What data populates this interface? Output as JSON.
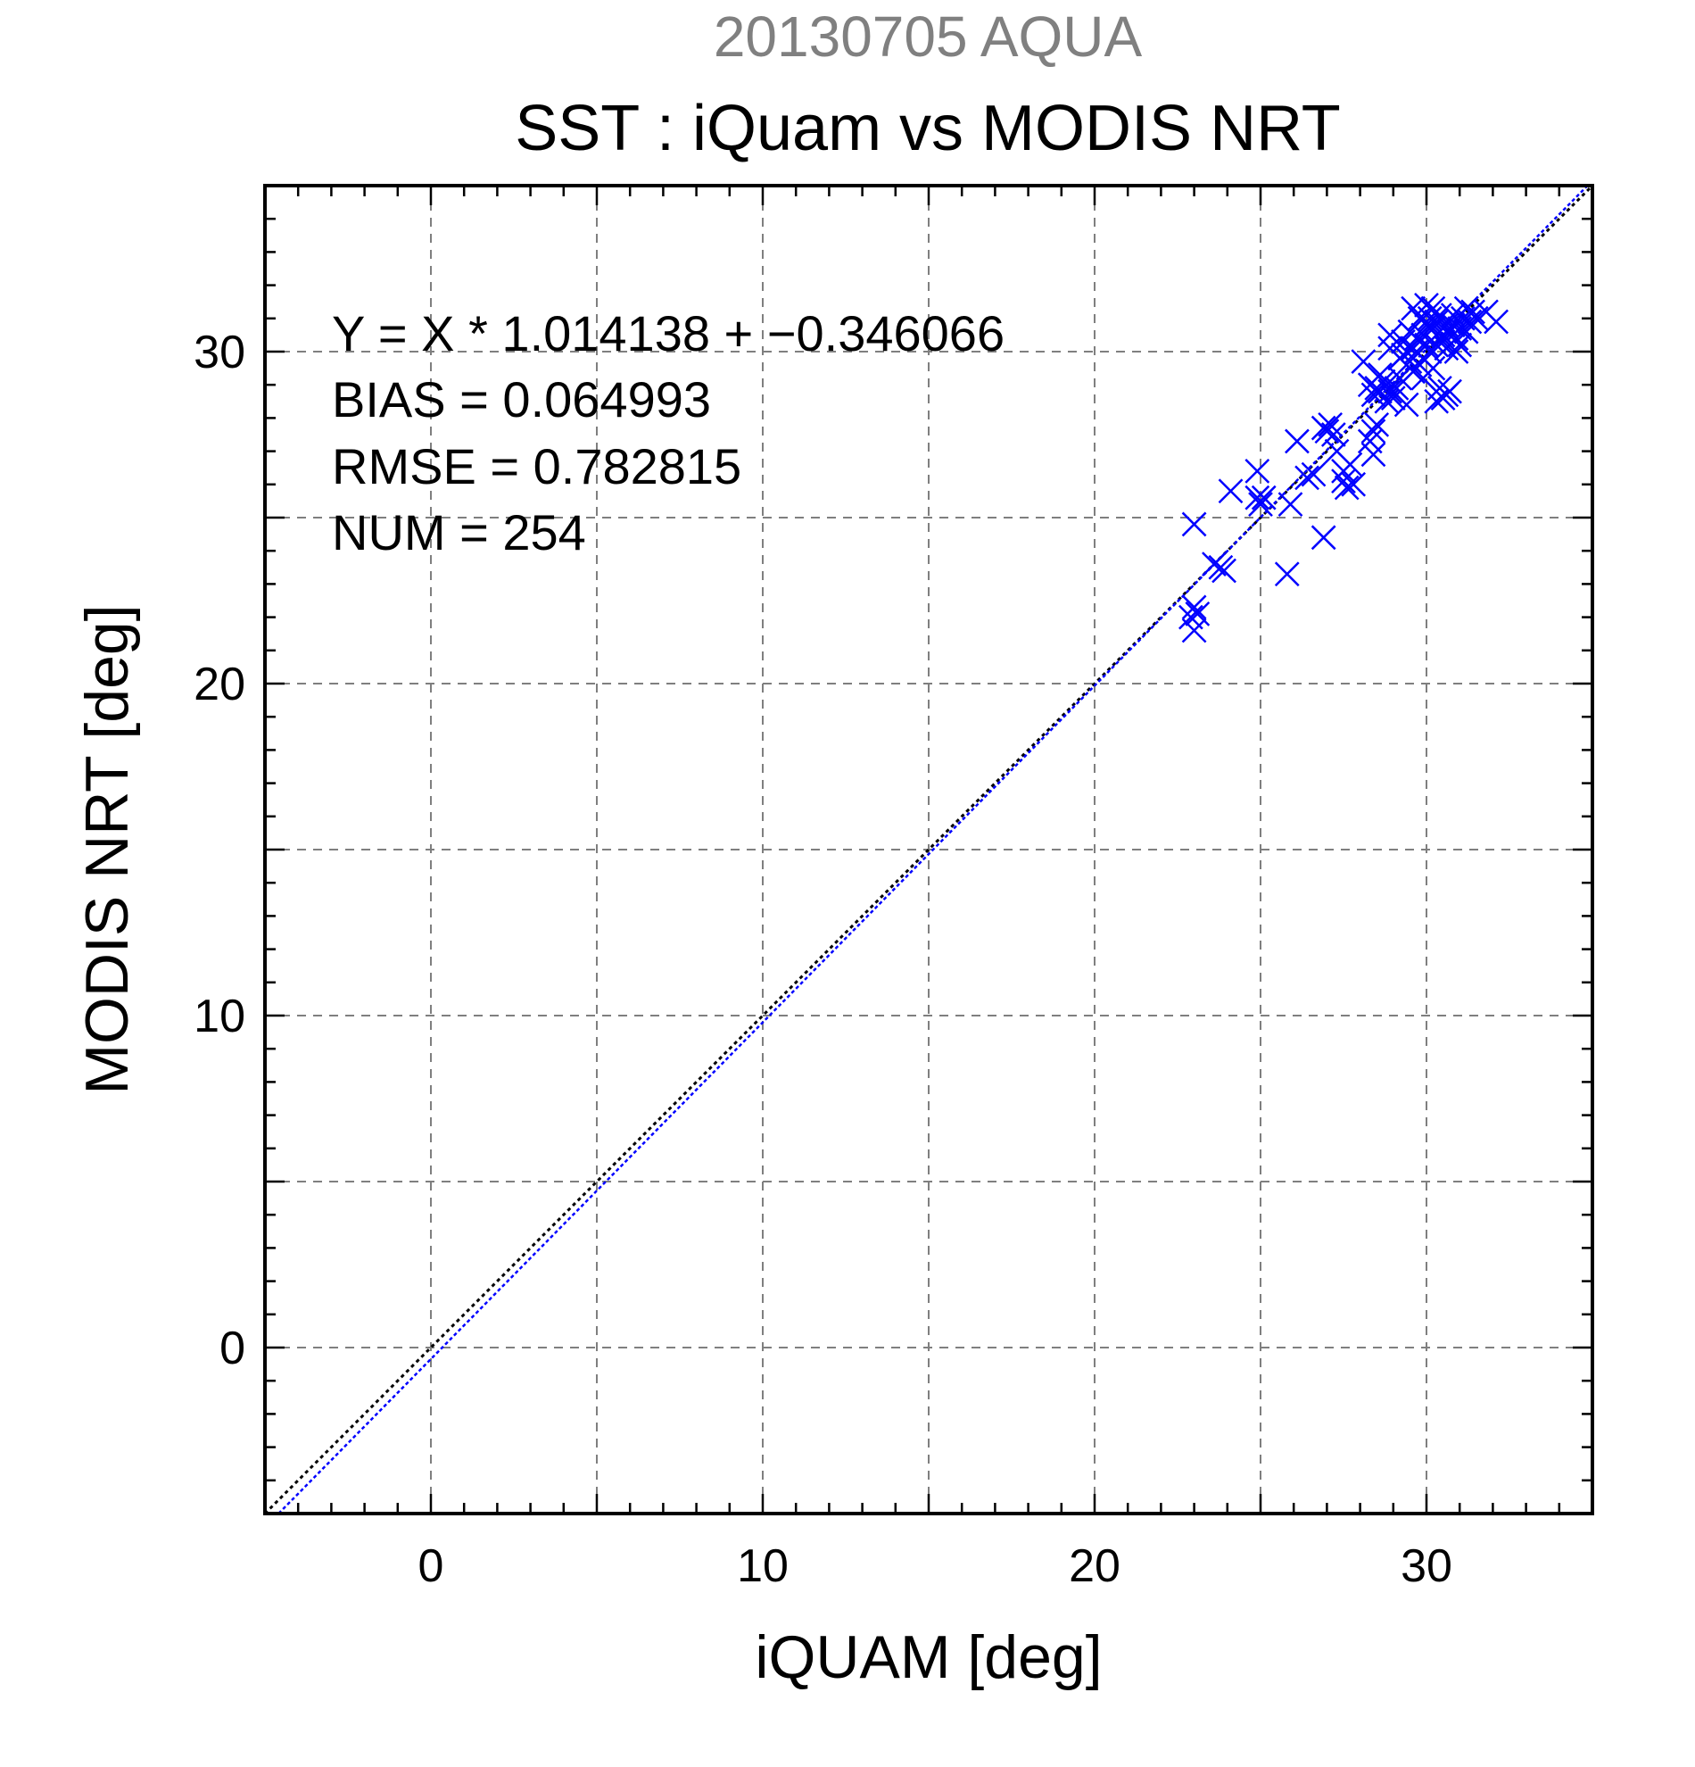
{
  "header": {
    "supertitle": "20130705 AQUA",
    "title": "SST : iQuam vs MODIS NRT"
  },
  "stats": {
    "equation": "Y = X * 1.014138 + −0.346066",
    "bias": "BIAS = 0.064993",
    "rmse": "RMSE = 0.782815",
    "num": "NUM = 254"
  },
  "chart_data": {
    "type": "scatter",
    "xlabel": "iQUAM [deg]",
    "ylabel": "MODIS NRT [deg]",
    "xlim": [
      -5,
      35
    ],
    "ylim": [
      -5,
      35
    ],
    "grid": true,
    "major_ticks": [
      0,
      10,
      20,
      30
    ],
    "grid_step": 5,
    "minor_step": 1,
    "tick_labels": [
      "0",
      "10",
      "20",
      "30"
    ],
    "marker": "x",
    "colors": {
      "points": "#0000ff",
      "fit": "#0000ff",
      "one_to_one": "#000000",
      "grid": "#7f7f7f"
    },
    "fit_line": {
      "slope": 1.014138,
      "intercept": -0.346066
    },
    "one_to_one_line": {
      "slope": 1,
      "intercept": 0
    },
    "points": [
      [
        23.0,
        24.8
      ],
      [
        23.0,
        22.3
      ],
      [
        23.1,
        22.1
      ],
      [
        22.9,
        22.0
      ],
      [
        23.0,
        21.6
      ],
      [
        23.6,
        23.6
      ],
      [
        23.8,
        23.5
      ],
      [
        23.9,
        23.4
      ],
      [
        24.1,
        25.8
      ],
      [
        24.9,
        26.4
      ],
      [
        24.9,
        25.6
      ],
      [
        25.1,
        25.6
      ],
      [
        25.0,
        25.4
      ],
      [
        25.8,
        23.3
      ],
      [
        25.9,
        25.4
      ],
      [
        26.1,
        27.3
      ],
      [
        26.4,
        26.2
      ],
      [
        26.6,
        26.3
      ],
      [
        26.9,
        27.7
      ],
      [
        27.0,
        27.6
      ],
      [
        27.1,
        27.8
      ],
      [
        27.2,
        27.5
      ],
      [
        26.9,
        24.4
      ],
      [
        27.3,
        27.0
      ],
      [
        27.5,
        26.1
      ],
      [
        27.6,
        25.9
      ],
      [
        27.7,
        26.6
      ],
      [
        27.5,
        26.4
      ],
      [
        27.8,
        26.0
      ],
      [
        28.1,
        29.7
      ],
      [
        28.3,
        29.0
      ],
      [
        28.4,
        28.7
      ],
      [
        28.5,
        28.9
      ],
      [
        28.6,
        28.8
      ],
      [
        28.7,
        29.1
      ],
      [
        28.8,
        29.0
      ],
      [
        28.9,
        28.8
      ],
      [
        28.5,
        27.8
      ],
      [
        28.4,
        27.6
      ],
      [
        28.4,
        26.9
      ],
      [
        28.3,
        27.3
      ],
      [
        28.8,
        28.5
      ],
      [
        29.0,
        28.6
      ],
      [
        29.1,
        28.9
      ],
      [
        28.9,
        30.1
      ],
      [
        29.2,
        29.8
      ],
      [
        29.3,
        29.9
      ],
      [
        29.4,
        30.0
      ],
      [
        29.5,
        29.7
      ],
      [
        29.6,
        30.1
      ],
      [
        29.7,
        30.0
      ],
      [
        29.8,
        29.6
      ],
      [
        29.9,
        29.8
      ],
      [
        30.0,
        30.2
      ],
      [
        29.6,
        31.3
      ],
      [
        29.8,
        31.0
      ],
      [
        30.0,
        30.8
      ],
      [
        30.1,
        31.0
      ],
      [
        30.2,
        30.7
      ],
      [
        30.3,
        30.9
      ],
      [
        30.4,
        31.1
      ],
      [
        30.5,
        30.5
      ],
      [
        30.6,
        30.8
      ],
      [
        30.7,
        30.6
      ],
      [
        30.8,
        31.1
      ],
      [
        30.9,
        30.4
      ],
      [
        31.0,
        30.7
      ],
      [
        31.1,
        31.0
      ],
      [
        31.2,
        30.6
      ],
      [
        31.3,
        30.9
      ],
      [
        31.4,
        31.2
      ],
      [
        31.5,
        31.0
      ],
      [
        31.8,
        31.2
      ],
      [
        32.1,
        30.9
      ],
      [
        29.6,
        29.4
      ],
      [
        29.4,
        28.4
      ],
      [
        29.2,
        29.2
      ],
      [
        29.9,
        29.2
      ],
      [
        30.2,
        29.5
      ],
      [
        30.4,
        28.9
      ],
      [
        30.5,
        28.6
      ],
      [
        30.6,
        28.7
      ],
      [
        30.3,
        28.5
      ],
      [
        30.7,
        28.8
      ],
      [
        30.1,
        30.0
      ],
      [
        30.5,
        30.3
      ],
      [
        30.9,
        30.0
      ],
      [
        30.2,
        31.3
      ],
      [
        29.9,
        30.5
      ],
      [
        29.7,
        30.4
      ],
      [
        31.0,
        30.2
      ],
      [
        30.6,
        30.1
      ],
      [
        29.5,
        30.6
      ],
      [
        29.3,
        30.3
      ],
      [
        28.9,
        30.5
      ],
      [
        30.0,
        31.4
      ],
      [
        30.8,
        30.8
      ],
      [
        30.3,
        30.2
      ],
      [
        31.2,
        31.3
      ],
      [
        28.6,
        29.3
      ]
    ]
  }
}
